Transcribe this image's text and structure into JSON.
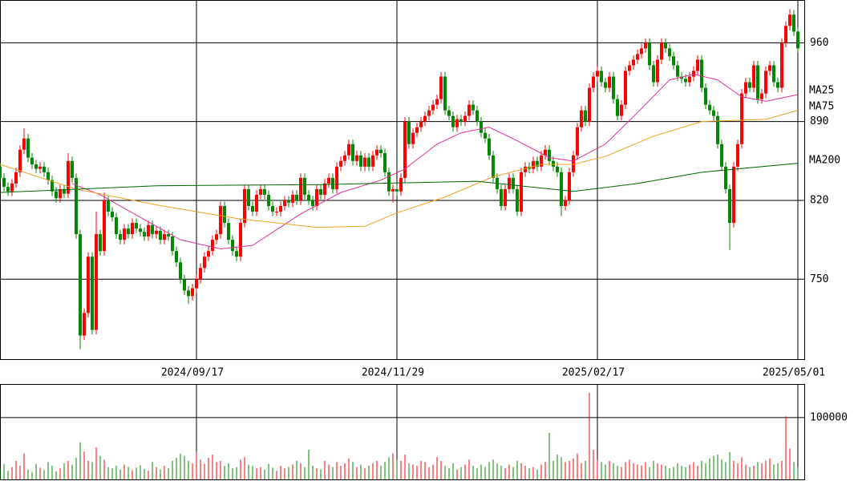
{
  "chart_data": {
    "type": "candlestick",
    "categories": [
      null,
      null,
      null,
      null,
      null,
      null,
      null,
      null,
      null,
      null,
      null,
      null,
      null,
      null,
      null,
      null,
      null,
      null,
      null,
      null,
      null,
      null,
      null,
      null,
      null,
      null,
      null,
      null,
      null,
      null,
      null,
      null,
      null,
      null,
      null,
      null,
      null,
      null,
      null,
      null,
      null,
      null,
      null,
      null,
      null,
      null,
      null,
      null,
      null,
      "2024/09/17",
      null,
      null,
      null,
      null,
      null,
      null,
      null,
      null,
      null,
      null,
      null,
      null,
      null,
      null,
      null,
      null,
      null,
      null,
      null,
      null,
      null,
      null,
      null,
      null,
      null,
      null,
      null,
      null,
      null,
      null,
      null,
      null,
      null,
      null,
      null,
      null,
      null,
      null,
      null,
      null,
      null,
      null,
      null,
      null,
      null,
      null,
      null,
      null,
      null,
      "2024/11/29",
      null,
      null,
      null,
      null,
      null,
      null,
      null,
      null,
      null,
      null,
      null,
      null,
      null,
      null,
      null,
      null,
      null,
      null,
      null,
      null,
      null,
      null,
      null,
      null,
      null,
      null,
      null,
      null,
      null,
      null,
      null,
      null,
      null,
      null,
      null,
      null,
      null,
      null,
      null,
      null,
      null,
      null,
      null,
      null,
      null,
      null,
      null,
      null,
      null,
      "2025/02/17",
      null,
      null,
      null,
      null,
      null,
      null,
      null,
      null,
      null,
      null,
      null,
      null,
      null,
      null,
      null,
      null,
      null,
      null,
      null,
      null,
      null,
      null,
      null,
      null,
      null,
      null,
      null,
      null,
      null,
      null,
      null,
      null,
      null,
      null,
      null,
      null,
      null,
      null,
      null,
      null,
      null,
      null,
      null,
      null,
      null,
      null,
      null,
      null,
      null,
      "2025/05/01"
    ],
    "open": [
      850,
      840,
      832,
      828,
      835,
      845,
      865,
      875,
      858,
      852,
      848,
      850,
      845,
      838,
      828,
      822,
      830,
      826,
      855,
      840,
      790,
      700,
      720,
      770,
      705,
      790,
      775,
      820,
      810,
      805,
      790,
      785,
      795,
      790,
      800,
      795,
      792,
      788,
      798,
      790,
      793,
      785,
      790,
      788,
      775,
      765,
      750,
      740,
      735,
      742,
      750,
      760,
      770,
      775,
      785,
      790,
      815,
      800,
      785,
      775,
      770,
      800,
      830,
      815,
      810,
      825,
      830,
      825,
      815,
      810,
      810,
      815,
      820,
      818,
      825,
      820,
      840,
      825,
      820,
      815,
      830,
      825,
      835,
      840,
      830,
      850,
      855,
      860,
      870,
      855,
      860,
      850,
      858,
      850,
      860,
      865,
      862,
      845,
      828,
      830,
      828,
      840,
      890,
      870,
      880,
      885,
      890,
      895,
      900,
      905,
      910,
      930,
      900,
      895,
      885,
      892,
      890,
      895,
      905,
      900,
      890,
      880,
      875,
      860,
      840,
      830,
      815,
      830,
      840,
      830,
      810,
      845,
      850,
      848,
      855,
      850,
      860,
      865,
      855,
      850,
      845,
      815,
      820,
      845,
      860,
      885,
      900,
      890,
      920,
      930,
      935,
      925,
      920,
      930,
      910,
      895,
      905,
      935,
      940,
      945,
      950,
      955,
      960,
      940,
      925,
      945,
      960,
      955,
      948,
      940,
      930,
      928,
      925,
      930,
      935,
      945,
      920,
      905,
      900,
      895,
      870,
      850,
      830,
      800,
      850,
      870,
      915,
      925,
      920,
      940,
      910,
      915,
      935,
      940,
      925,
      920,
      960,
      975,
      985,
      970
    ],
    "high": [
      854,
      844,
      836,
      839,
      849,
      869,
      884,
      879,
      862,
      856,
      854,
      854,
      849,
      842,
      832,
      834,
      834,
      862,
      859,
      844,
      794,
      724,
      774,
      774,
      810,
      794,
      827,
      824,
      814,
      809,
      794,
      799,
      799,
      804,
      804,
      799,
      796,
      802,
      802,
      797,
      797,
      794,
      794,
      792,
      779,
      769,
      754,
      744,
      746,
      754,
      764,
      774,
      779,
      789,
      794,
      819,
      819,
      804,
      789,
      779,
      804,
      834,
      834,
      819,
      829,
      834,
      834,
      829,
      819,
      814,
      819,
      824,
      824,
      829,
      829,
      844,
      844,
      829,
      824,
      834,
      834,
      839,
      844,
      844,
      854,
      859,
      864,
      874,
      874,
      864,
      864,
      862,
      862,
      864,
      869,
      869,
      866,
      849,
      834,
      834,
      844,
      894,
      894,
      884,
      889,
      894,
      899,
      904,
      909,
      914,
      934,
      934,
      904,
      899,
      896,
      896,
      899,
      909,
      909,
      904,
      894,
      884,
      879,
      864,
      844,
      834,
      834,
      844,
      844,
      834,
      849,
      854,
      854,
      859,
      859,
      864,
      869,
      869,
      859,
      854,
      849,
      824,
      849,
      864,
      889,
      904,
      904,
      924,
      934,
      939,
      939,
      929,
      934,
      934,
      914,
      909,
      939,
      944,
      949,
      954,
      959,
      964,
      964,
      944,
      949,
      964,
      964,
      959,
      952,
      944,
      934,
      932,
      934,
      939,
      949,
      949,
      924,
      909,
      904,
      899,
      874,
      854,
      834,
      854,
      874,
      919,
      929,
      929,
      944,
      944,
      919,
      939,
      944,
      944,
      929,
      964,
      979,
      990,
      989,
      974
    ],
    "low": [
      836,
      828,
      824,
      824,
      831,
      841,
      861,
      854,
      848,
      844,
      844,
      841,
      834,
      824,
      818,
      818,
      822,
      822,
      836,
      786,
      688,
      696,
      716,
      701,
      701,
      771,
      771,
      806,
      801,
      786,
      781,
      781,
      786,
      786,
      791,
      788,
      784,
      784,
      786,
      786,
      781,
      781,
      784,
      771,
      761,
      746,
      736,
      728,
      731,
      738,
      746,
      756,
      766,
      771,
      781,
      786,
      796,
      781,
      771,
      766,
      766,
      796,
      811,
      806,
      806,
      821,
      821,
      811,
      806,
      806,
      806,
      811,
      814,
      814,
      816,
      816,
      821,
      816,
      811,
      811,
      821,
      821,
      831,
      826,
      826,
      846,
      851,
      856,
      851,
      851,
      846,
      846,
      846,
      846,
      856,
      858,
      841,
      824,
      818,
      824,
      824,
      836,
      866,
      866,
      876,
      881,
      886,
      891,
      896,
      901,
      906,
      896,
      891,
      881,
      881,
      886,
      886,
      891,
      896,
      886,
      876,
      871,
      856,
      836,
      826,
      811,
      811,
      826,
      826,
      806,
      806,
      841,
      844,
      844,
      846,
      846,
      856,
      851,
      846,
      841,
      806,
      811,
      816,
      841,
      856,
      881,
      886,
      886,
      916,
      926,
      921,
      916,
      916,
      906,
      891,
      891,
      901,
      931,
      936,
      941,
      946,
      951,
      936,
      921,
      921,
      941,
      951,
      944,
      936,
      926,
      924,
      921,
      921,
      926,
      931,
      916,
      901,
      896,
      891,
      866,
      846,
      826,
      776,
      796,
      846,
      866,
      911,
      916,
      916,
      906,
      906,
      911,
      931,
      921,
      916,
      916,
      956,
      971,
      966,
      951
    ],
    "close": [
      840,
      832,
      828,
      835,
      845,
      865,
      875,
      858,
      852,
      848,
      850,
      845,
      838,
      828,
      822,
      830,
      826,
      855,
      840,
      790,
      700,
      720,
      770,
      705,
      790,
      775,
      820,
      810,
      805,
      790,
      785,
      795,
      790,
      800,
      795,
      792,
      788,
      798,
      790,
      793,
      785,
      790,
      788,
      775,
      765,
      750,
      740,
      735,
      742,
      750,
      760,
      770,
      775,
      785,
      790,
      815,
      800,
      785,
      775,
      770,
      800,
      830,
      815,
      810,
      825,
      830,
      825,
      815,
      810,
      810,
      815,
      820,
      818,
      825,
      820,
      840,
      825,
      820,
      815,
      830,
      825,
      835,
      840,
      830,
      850,
      855,
      860,
      870,
      855,
      860,
      850,
      858,
      850,
      860,
      865,
      862,
      845,
      828,
      830,
      828,
      840,
      890,
      870,
      880,
      885,
      890,
      895,
      900,
      905,
      910,
      930,
      900,
      895,
      885,
      892,
      890,
      895,
      905,
      900,
      890,
      880,
      875,
      860,
      840,
      830,
      815,
      830,
      840,
      830,
      810,
      845,
      850,
      848,
      855,
      850,
      860,
      865,
      855,
      850,
      845,
      815,
      820,
      845,
      860,
      885,
      900,
      890,
      920,
      930,
      935,
      925,
      920,
      930,
      910,
      895,
      905,
      935,
      940,
      945,
      950,
      955,
      960,
      940,
      925,
      945,
      960,
      955,
      948,
      940,
      930,
      928,
      925,
      930,
      935,
      945,
      920,
      905,
      900,
      895,
      870,
      850,
      830,
      800,
      850,
      870,
      915,
      925,
      920,
      940,
      910,
      915,
      935,
      940,
      925,
      920,
      960,
      975,
      985,
      970,
      955
    ],
    "up_color": "#ff0000",
    "down_color": "#008800",
    "ylim": [
      679,
      998
    ],
    "yticks": [
      960,
      890,
      820,
      750
    ],
    "grid": true,
    "moving_averages": [
      {
        "name": "MA25",
        "color": "#e0309a",
        "x": [
          18,
          25,
          35,
          45,
          55,
          63,
          75,
          85,
          95,
          101,
          109,
          115,
          122,
          129,
          137,
          143,
          151,
          159,
          167,
          173,
          179,
          185,
          191,
          199
        ],
        "values": [
          835,
          825,
          805,
          785,
          777,
          780,
          808,
          827,
          838,
          848,
          870,
          880,
          885,
          873,
          858,
          855,
          870,
          898,
          927,
          932,
          927,
          912,
          908,
          914
        ]
      },
      {
        "name": "MA75",
        "color": "#f0a020",
        "x": [
          0,
          19,
          39,
          59,
          79,
          91,
          99,
          111,
          123,
          135,
          143,
          151,
          163,
          175,
          183,
          191,
          199
        ],
        "values": [
          852,
          830,
          816,
          804,
          796,
          797,
          809,
          823,
          841,
          852,
          852,
          859,
          877,
          890,
          891,
          892,
          900
        ]
      },
      {
        "name": "MA200",
        "color": "#006400",
        "x": [
          0,
          39,
          79,
          119,
          143,
          159,
          175,
          199
        ],
        "values": [
          827,
          833,
          834,
          837,
          828,
          835,
          845,
          853
        ]
      }
    ],
    "volume": {
      "ylim": [
        0,
        153000
      ],
      "yticks": [
        100000
      ],
      "values": [
        18000,
        25000,
        14000,
        20000,
        30000,
        22000,
        42000,
        16000,
        12000,
        25000,
        19000,
        15000,
        28000,
        22000,
        13000,
        18000,
        26000,
        30000,
        24000,
        35000,
        60000,
        45000,
        30000,
        28000,
        52000,
        38000,
        32000,
        20000,
        18000,
        22000,
        16000,
        24000,
        20000,
        15000,
        19000,
        23000,
        17000,
        14000,
        28000,
        20000,
        16000,
        22000,
        18000,
        30000,
        35000,
        42000,
        38000,
        30000,
        26000,
        45000,
        32000,
        25000,
        35000,
        40000,
        28000,
        30000,
        22000,
        26000,
        18000,
        20000,
        32000,
        36000,
        24000,
        22000,
        18000,
        20000,
        16000,
        25000,
        19000,
        14000,
        22000,
        18000,
        20000,
        24000,
        30000,
        26000,
        20000,
        48000,
        22000,
        18000,
        16000,
        30000,
        24000,
        20000,
        28000,
        22000,
        26000,
        34000,
        28000,
        20000,
        24000,
        18000,
        22000,
        26000,
        30000,
        22000,
        28000,
        36000,
        42000,
        32000,
        30000,
        40000,
        26000,
        24000,
        22000,
        30000,
        28000,
        20000,
        24000,
        36000,
        30000,
        22000,
        18000,
        26000,
        16000,
        20000,
        24000,
        32000,
        22000,
        18000,
        24000,
        20000,
        28000,
        32000,
        26000,
        22000,
        18000,
        24000,
        20000,
        30000,
        26000,
        22000,
        18000,
        20000,
        16000,
        24000,
        28000,
        75000,
        30000,
        40000,
        36000,
        28000,
        30000,
        34000,
        42000,
        26000,
        30000,
        140000,
        48000,
        32000,
        28000,
        24000,
        30000,
        26000,
        22000,
        20000,
        28000,
        32000,
        26000,
        24000,
        22000,
        28000,
        20000,
        30000,
        26000,
        24000,
        22000,
        18000,
        20000,
        26000,
        22000,
        20000,
        24000,
        28000,
        22000,
        30000,
        26000,
        34000,
        38000,
        40000,
        32000,
        28000,
        44000,
        30000,
        26000,
        36000,
        24000,
        20000,
        22000,
        28000,
        26000,
        30000,
        34000,
        24000,
        26000,
        30000,
        102000,
        50000,
        28000,
        20000
      ]
    }
  }
}
